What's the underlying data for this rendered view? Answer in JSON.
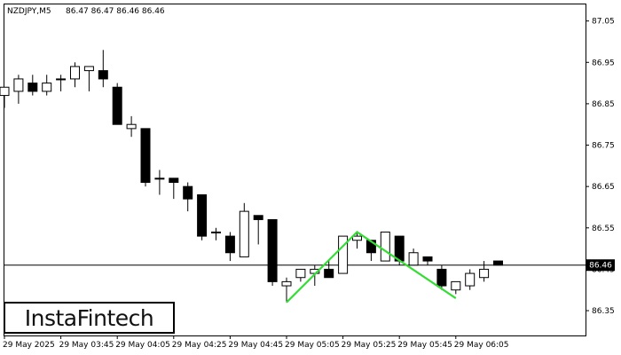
{
  "header": {
    "symbol": "NZDJPY,M5",
    "ohlc": "86.47 86.47 86.46 86.46"
  },
  "brand": {
    "logo_text": "InstaFintech"
  },
  "chart_data": {
    "type": "candlestick",
    "timeframe": "M5",
    "current_price": 86.46,
    "current_price_label": "86.46",
    "y_ticks": [
      86.35,
      86.45,
      86.55,
      86.65,
      86.75,
      86.85,
      86.95,
      87.05
    ],
    "y_tick_labels": [
      "86.35",
      "86.45",
      "86.55",
      "86.65",
      "86.75",
      "86.85",
      "86.95",
      "87.05"
    ],
    "ylim": [
      86.29,
      87.09
    ],
    "x_ticks": [
      0,
      4,
      8,
      12,
      16,
      20,
      24,
      28,
      32
    ],
    "x_tick_labels": [
      "29 May 2025",
      "29 May 03:45",
      "29 May 04:05",
      "29 May 04:25",
      "29 May 04:45",
      "29 May 05:05",
      "29 May 05:25",
      "29 May 05:45",
      "29 May 06:05"
    ],
    "candles": [
      {
        "o": 86.87,
        "h": 86.89,
        "l": 86.84,
        "c": 86.89
      },
      {
        "o": 86.88,
        "h": 86.92,
        "l": 86.85,
        "c": 86.91
      },
      {
        "o": 86.9,
        "h": 86.92,
        "l": 86.87,
        "c": 86.88
      },
      {
        "o": 86.88,
        "h": 86.92,
        "l": 86.87,
        "c": 86.9
      },
      {
        "o": 86.91,
        "h": 86.92,
        "l": 86.88,
        "c": 86.91
      },
      {
        "o": 86.91,
        "h": 86.95,
        "l": 86.89,
        "c": 86.94
      },
      {
        "o": 86.93,
        "h": 86.94,
        "l": 86.88,
        "c": 86.94
      },
      {
        "o": 86.93,
        "h": 86.98,
        "l": 86.89,
        "c": 86.91
      },
      {
        "o": 86.89,
        "h": 86.9,
        "l": 86.8,
        "c": 86.8
      },
      {
        "o": 86.79,
        "h": 86.82,
        "l": 86.77,
        "c": 86.8
      },
      {
        "o": 86.79,
        "h": 86.79,
        "l": 86.65,
        "c": 86.66
      },
      {
        "o": 86.67,
        "h": 86.69,
        "l": 86.63,
        "c": 86.67
      },
      {
        "o": 86.67,
        "h": 86.67,
        "l": 86.62,
        "c": 86.66
      },
      {
        "o": 86.65,
        "h": 86.66,
        "l": 86.59,
        "c": 86.62
      },
      {
        "o": 86.63,
        "h": 86.63,
        "l": 86.52,
        "c": 86.53
      },
      {
        "o": 86.54,
        "h": 86.55,
        "l": 86.52,
        "c": 86.54
      },
      {
        "o": 86.53,
        "h": 86.54,
        "l": 86.47,
        "c": 86.49
      },
      {
        "o": 86.48,
        "h": 86.61,
        "l": 86.48,
        "c": 86.59
      },
      {
        "o": 86.58,
        "h": 86.58,
        "l": 86.51,
        "c": 86.57
      },
      {
        "o": 86.57,
        "h": 86.57,
        "l": 86.41,
        "c": 86.42
      },
      {
        "o": 86.41,
        "h": 86.43,
        "l": 86.37,
        "c": 86.42
      },
      {
        "o": 86.43,
        "h": 86.45,
        "l": 86.42,
        "c": 86.45
      },
      {
        "o": 86.44,
        "h": 86.46,
        "l": 86.41,
        "c": 86.45
      },
      {
        "o": 86.45,
        "h": 86.47,
        "l": 86.43,
        "c": 86.43
      },
      {
        "o": 86.44,
        "h": 86.53,
        "l": 86.44,
        "c": 86.53
      },
      {
        "o": 86.52,
        "h": 86.54,
        "l": 86.5,
        "c": 86.53
      },
      {
        "o": 86.52,
        "h": 86.52,
        "l": 86.47,
        "c": 86.49
      },
      {
        "o": 86.47,
        "h": 86.54,
        "l": 86.47,
        "c": 86.54
      },
      {
        "o": 86.53,
        "h": 86.53,
        "l": 86.46,
        "c": 86.47
      },
      {
        "o": 86.46,
        "h": 86.5,
        "l": 86.46,
        "c": 86.49
      },
      {
        "o": 86.48,
        "h": 86.48,
        "l": 86.46,
        "c": 86.47
      },
      {
        "o": 86.45,
        "h": 86.46,
        "l": 86.4,
        "c": 86.41
      },
      {
        "o": 86.4,
        "h": 86.42,
        "l": 86.39,
        "c": 86.42
      },
      {
        "o": 86.41,
        "h": 86.45,
        "l": 86.4,
        "c": 86.44
      },
      {
        "o": 86.43,
        "h": 86.47,
        "l": 86.42,
        "c": 86.45
      },
      {
        "o": 86.47,
        "h": 86.47,
        "l": 86.46,
        "c": 86.46
      }
    ],
    "pattern": {
      "color": "#33dd33",
      "points": [
        {
          "i": 20,
          "price": 86.37
        },
        {
          "i": 25,
          "price": 86.54
        },
        {
          "i": 32,
          "price": 86.38
        }
      ]
    },
    "grid": false,
    "legend": "none"
  }
}
